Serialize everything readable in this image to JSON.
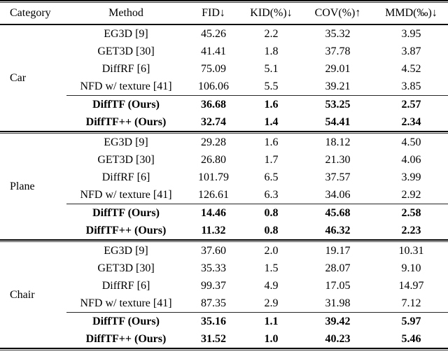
{
  "table": {
    "headers": {
      "category": "Category",
      "method": "Method",
      "fid": "FID↓",
      "kid": "KID(%)↓",
      "cov": "COV(%)↑",
      "mmd": "MMD(‰)↓"
    },
    "sections": [
      {
        "category": "Car",
        "rows": [
          {
            "method": "EG3D [9]",
            "fid": "45.26",
            "kid": "2.2",
            "cov": "35.32",
            "mmd": "3.95"
          },
          {
            "method": "GET3D [30]",
            "fid": "41.41",
            "kid": "1.8",
            "cov": "37.78",
            "mmd": "3.87"
          },
          {
            "method": "DiffRF [6]",
            "fid": "75.09",
            "kid": "5.1",
            "cov": "29.01",
            "mmd": "4.52"
          },
          {
            "method": "NFD w/ texture [41]",
            "fid": "106.06",
            "kid": "5.5",
            "cov": "39.21",
            "mmd": "3.85"
          },
          {
            "method": "DiffTF (Ours)",
            "fid": "36.68",
            "kid": "1.6",
            "cov": "53.25",
            "mmd": "2.57"
          },
          {
            "method": "DiffTF++ (Ours)",
            "fid": "32.74",
            "kid": "1.4",
            "cov": "54.41",
            "mmd": "2.34"
          }
        ]
      },
      {
        "category": "Plane",
        "rows": [
          {
            "method": "EG3D [9]",
            "fid": "29.28",
            "kid": "1.6",
            "cov": "18.12",
            "mmd": "4.50"
          },
          {
            "method": "GET3D [30]",
            "fid": "26.80",
            "kid": "1.7",
            "cov": "21.30",
            "mmd": "4.06"
          },
          {
            "method": "DiffRF [6]",
            "fid": "101.79",
            "kid": "6.5",
            "cov": "37.57",
            "mmd": "3.99"
          },
          {
            "method": "NFD w/ texture [41]",
            "fid": "126.61",
            "kid": "6.3",
            "cov": "34.06",
            "mmd": "2.92"
          },
          {
            "method": "DiffTF (Ours)",
            "fid": "14.46",
            "kid": "0.8",
            "cov": "45.68",
            "mmd": "2.58"
          },
          {
            "method": "DiffTF++ (Ours)",
            "fid": "11.32",
            "kid": "0.8",
            "cov": "46.32",
            "mmd": "2.23"
          }
        ]
      },
      {
        "category": "Chair",
        "rows": [
          {
            "method": "EG3D [9]",
            "fid": "37.60",
            "kid": "2.0",
            "cov": "19.17",
            "mmd": "10.31"
          },
          {
            "method": "GET3D [30]",
            "fid": "35.33",
            "kid": "1.5",
            "cov": "28.07",
            "mmd": "9.10"
          },
          {
            "method": "DiffRF [6]",
            "fid": "99.37",
            "kid": "4.9",
            "cov": "17.05",
            "mmd": "14.97"
          },
          {
            "method": "NFD w/ texture [41]",
            "fid": "87.35",
            "kid": "2.9",
            "cov": "31.98",
            "mmd": "7.12"
          },
          {
            "method": "DiffTF (Ours)",
            "fid": "35.16",
            "kid": "1.1",
            "cov": "39.42",
            "mmd": "5.97"
          },
          {
            "method": "DiffTF++ (Ours)",
            "fid": "31.52",
            "kid": "1.0",
            "cov": "40.23",
            "mmd": "5.46"
          }
        ]
      }
    ]
  },
  "colors": {
    "text": "#000000",
    "background": "#ffffff",
    "rule": "#000000"
  }
}
